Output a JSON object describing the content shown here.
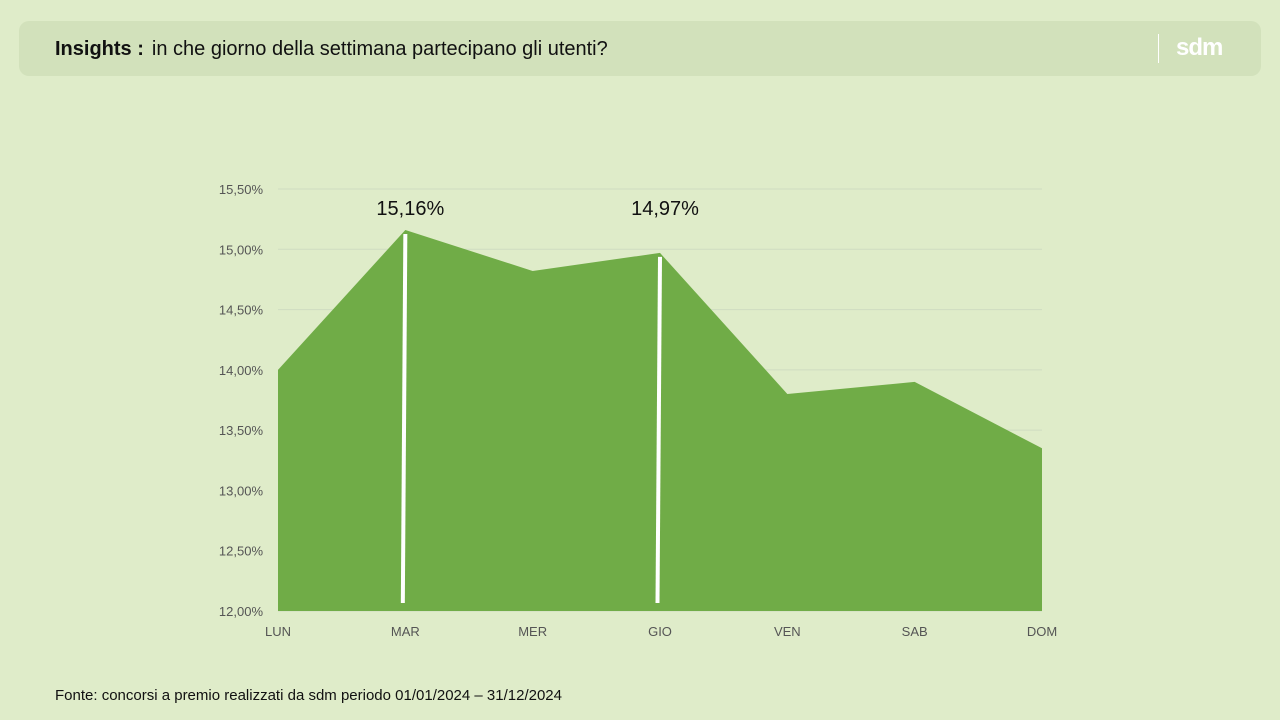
{
  "header": {
    "label": "Insights :",
    "question": "in che giorno della settimana partecipano gli utenti?",
    "logo": "sdm"
  },
  "footer": {
    "source": "Fonte: concorsi a premio realizzati da sdm periodo 01/01/2024 – 31/12/2024"
  },
  "colors": {
    "background": "#dfecc9",
    "area_fill": "#70ac47",
    "marker": "#ffffff",
    "gridline": "#cfdcc1"
  },
  "chart_data": {
    "type": "area",
    "categories": [
      "LUN",
      "MAR",
      "MER",
      "GIO",
      "VEN",
      "SAB",
      "DOM"
    ],
    "values": [
      14.0,
      15.16,
      14.82,
      14.97,
      13.8,
      13.9,
      13.35
    ],
    "ylim": [
      12.0,
      15.5
    ],
    "yticks": [
      "12,00%",
      "12,50%",
      "13,00%",
      "13,50%",
      "14,00%",
      "14,50%",
      "15,00%",
      "15,50%"
    ],
    "grid": true,
    "annotations": [
      {
        "category": "MAR",
        "label": "15,16%"
      },
      {
        "category": "GIO",
        "label": "14,97%"
      }
    ]
  }
}
